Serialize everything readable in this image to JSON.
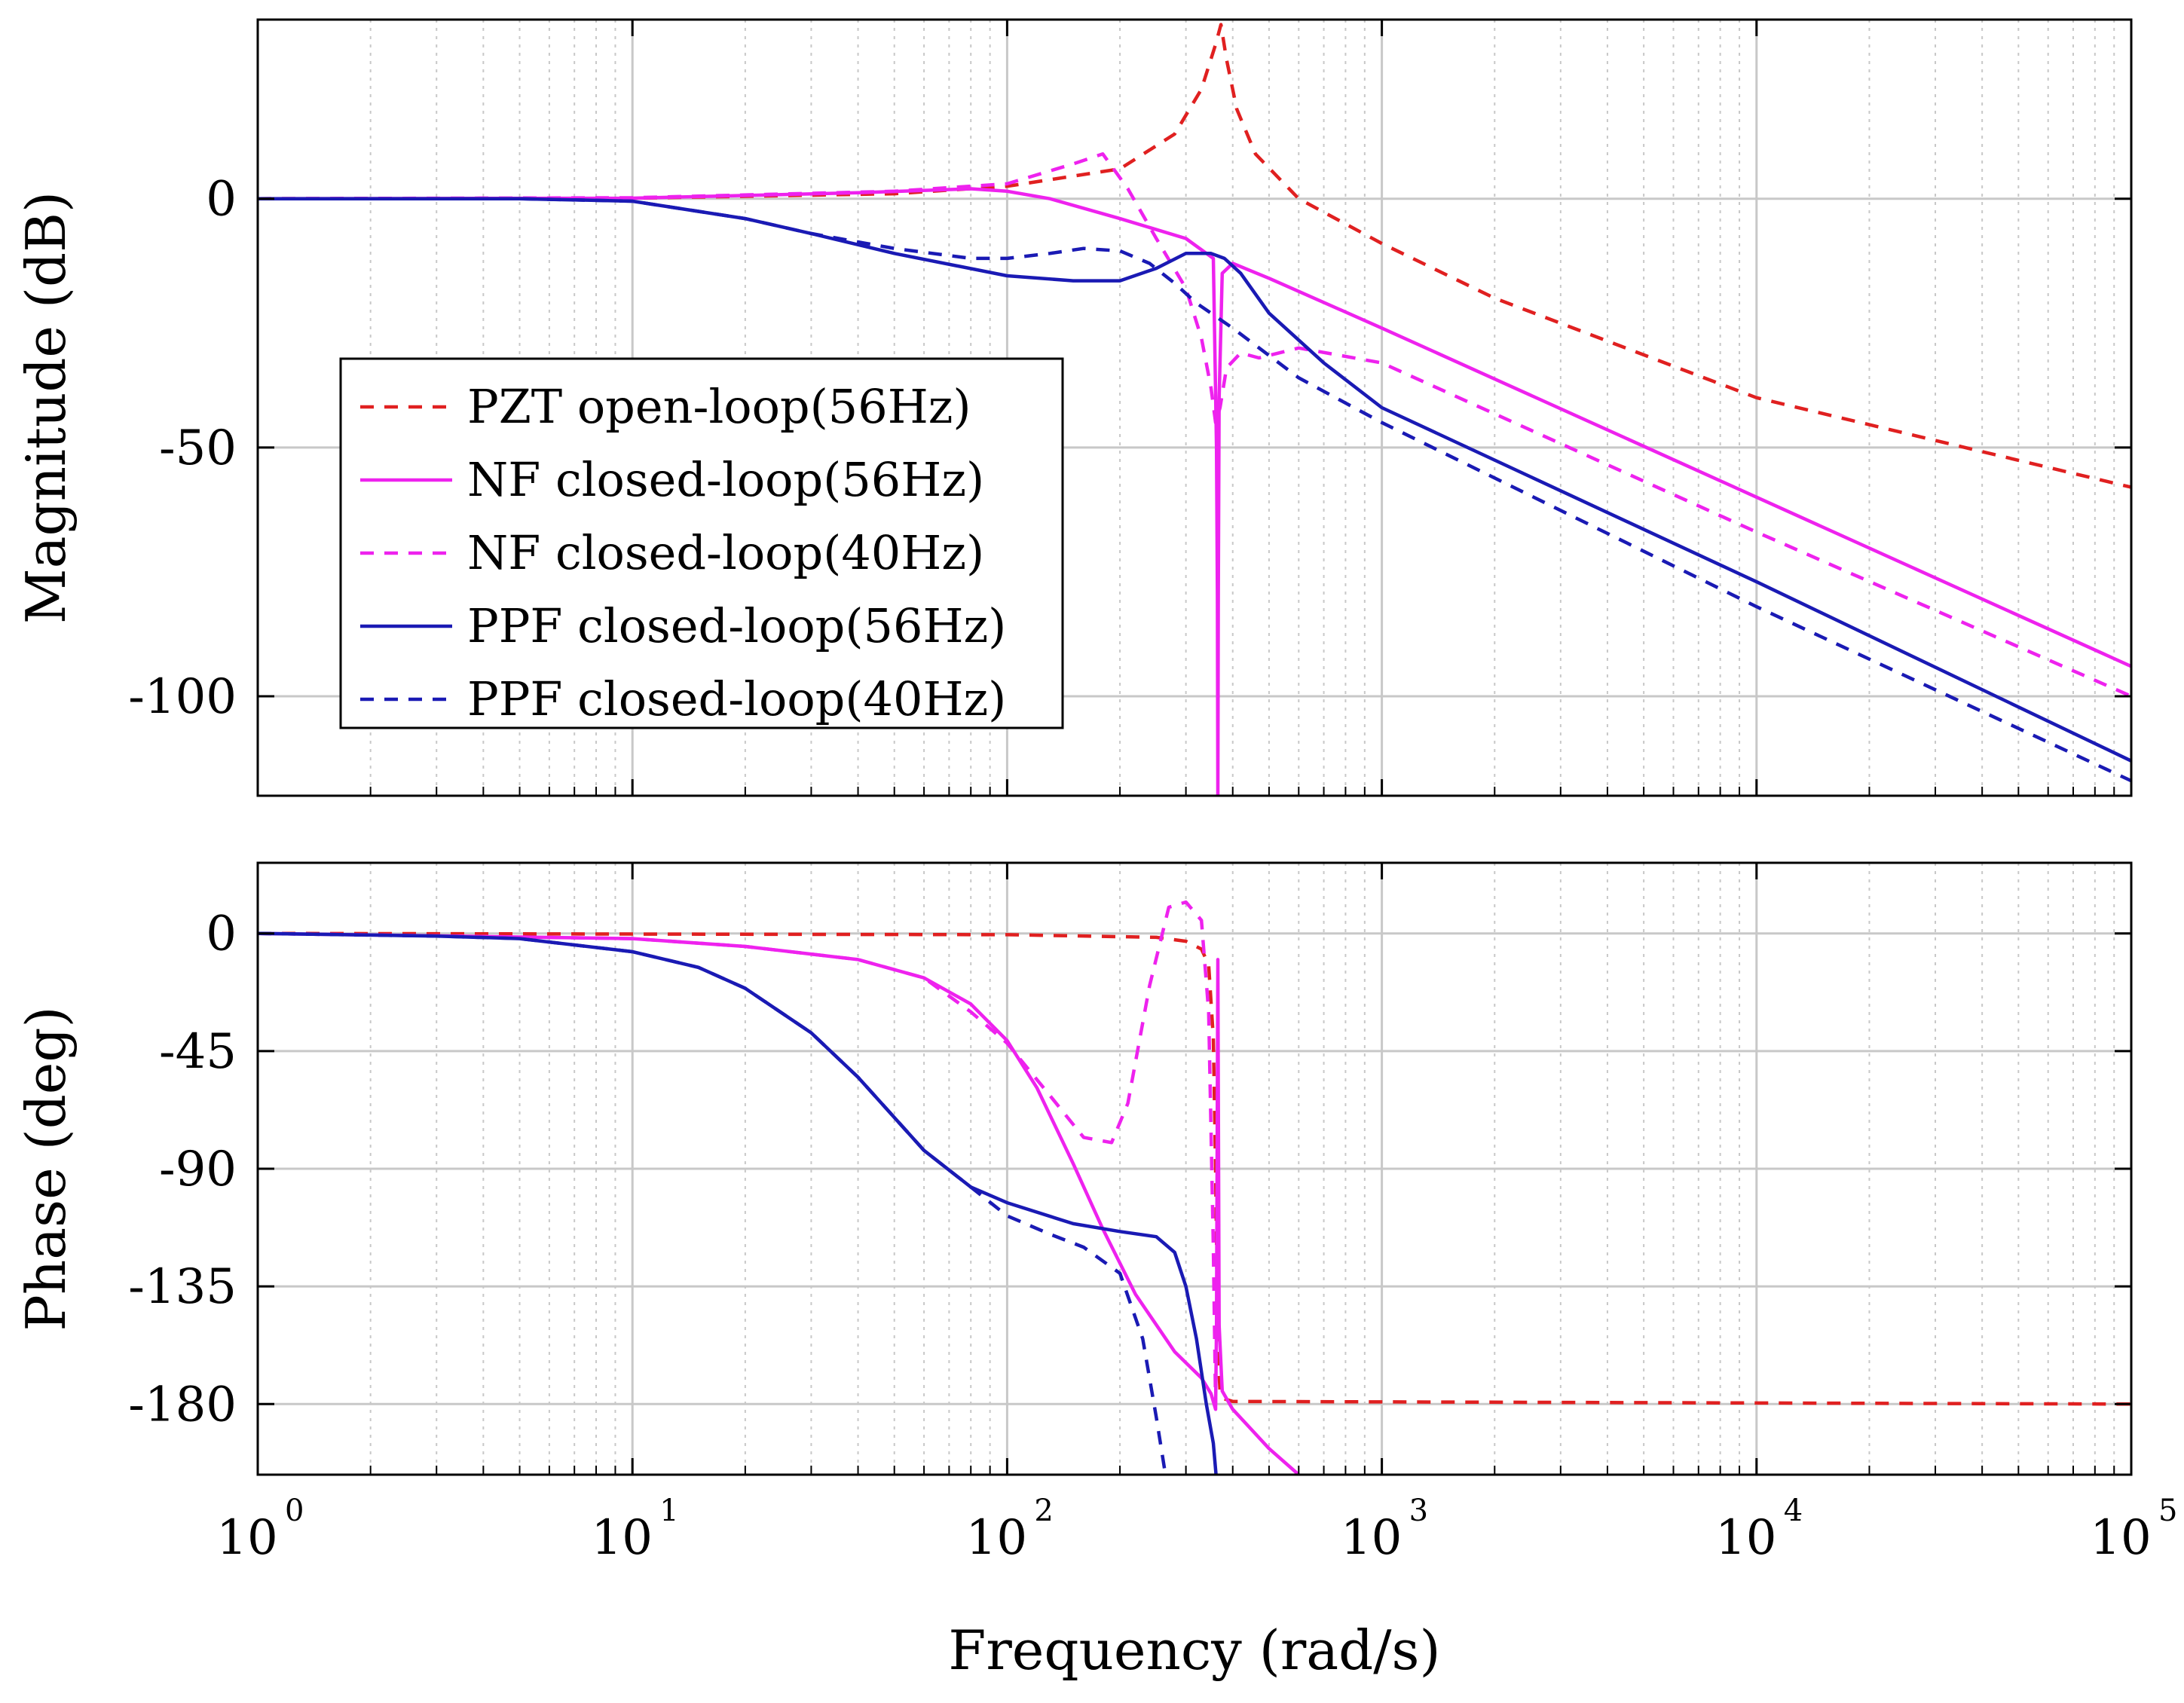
{
  "chart_data": {
    "type": "line",
    "title": "",
    "xlabel": "Frequency (rad/s)",
    "xscale": "log",
    "xlim": [
      1,
      100000
    ],
    "x_ticks": [
      {
        "base": "10",
        "exp": "0"
      },
      {
        "base": "10",
        "exp": "1"
      },
      {
        "base": "10",
        "exp": "2"
      },
      {
        "base": "10",
        "exp": "3"
      },
      {
        "base": "10",
        "exp": "4"
      },
      {
        "base": "10",
        "exp": "5"
      }
    ],
    "colors": {
      "pzt": "#e02020",
      "nf": "#ee22ee",
      "ppf": "#1a1ab4",
      "grid": "#c8c8c8"
    },
    "legend": {
      "position": "lower-left of magnitude plot",
      "entries": [
        {
          "label": "PZT open-loop(56Hz)",
          "color": "#e02020",
          "dash": true
        },
        {
          "label": "NF closed-loop(56Hz)",
          "color": "#ee22ee",
          "dash": false
        },
        {
          "label": "NF closed-loop(40Hz)",
          "color": "#ee22ee",
          "dash": true
        },
        {
          "label": "PPF closed-loop(56Hz)",
          "color": "#1a1ab4",
          "dash": false
        },
        {
          "label": "PPF closed-loop(40Hz)",
          "color": "#1a1ab4",
          "dash": true
        }
      ]
    },
    "magnitude": {
      "ylabel": "Magnitude (dB)",
      "ylim": [
        -120,
        36
      ],
      "y_ticks": [
        "0",
        "-50",
        "-100"
      ],
      "y_tick_values": [
        0,
        -50,
        -100
      ],
      "series": [
        {
          "name": "PZT open-loop(56Hz)",
          "color": "#e02020",
          "dash": true,
          "x": [
            1,
            10,
            50,
            100,
            200,
            280,
            330,
            360,
            372,
            385,
            410,
            460,
            600,
            1000,
            2000,
            10000,
            100000
          ],
          "y": [
            0,
            0.1,
            1,
            2.5,
            6,
            13,
            22,
            31,
            35,
            28,
            18,
            9,
            0,
            -9,
            -20,
            -40,
            -58
          ]
        },
        {
          "name": "NF closed-loop(56Hz)",
          "color": "#ee22ee",
          "dash": false,
          "x": [
            1,
            10,
            40,
            80,
            100,
            130,
            200,
            300,
            355,
            362,
            364,
            365,
            366,
            368,
            375,
            400,
            500,
            1000,
            10000,
            100000
          ],
          "y": [
            0,
            0.1,
            1.2,
            2,
            1.5,
            0,
            -4,
            -8,
            -12,
            -50,
            -80,
            -120,
            -80,
            -40,
            -15,
            -13,
            -16,
            -26,
            -60,
            -94
          ]
        },
        {
          "name": "NF closed-loop(40Hz)",
          "color": "#ee22ee",
          "dash": true,
          "x": [
            1,
            10,
            50,
            100,
            150,
            180,
            210,
            250,
            300,
            330,
            350,
            360,
            370,
            385,
            420,
            470,
            600,
            1000,
            10000,
            100000
          ],
          "y": [
            0,
            0.2,
            1.5,
            3,
            7,
            9,
            2,
            -8,
            -18,
            -28,
            -38,
            -45,
            -42,
            -34,
            -31,
            -32,
            -30,
            -33,
            -67,
            -100
          ]
        },
        {
          "name": "PPF closed-loop(56Hz)",
          "color": "#1a1ab4",
          "dash": false,
          "x": [
            1,
            5,
            10,
            20,
            30,
            50,
            100,
            150,
            200,
            250,
            300,
            350,
            380,
            420,
            500,
            700,
            1000,
            10000,
            100000
          ],
          "y": [
            0,
            0,
            -0.5,
            -4,
            -7,
            -11,
            -15.5,
            -16.5,
            -16.5,
            -14,
            -11,
            -11,
            -12,
            -15,
            -23,
            -33,
            -42,
            -77,
            -113
          ]
        },
        {
          "name": "PPF closed-loop(40Hz)",
          "color": "#1a1ab4",
          "dash": true,
          "x": [
            1,
            5,
            10,
            20,
            30,
            50,
            80,
            100,
            130,
            160,
            200,
            240,
            280,
            320,
            400,
            600,
            1000,
            10000,
            100000
          ],
          "y": [
            0,
            0,
            -0.5,
            -4,
            -7,
            -10,
            -12,
            -12,
            -11,
            -10,
            -10.5,
            -13,
            -17,
            -21,
            -26,
            -36,
            -45,
            -82,
            -117
          ]
        }
      ]
    },
    "phase": {
      "ylabel": "Phase (deg)",
      "ylim": [
        -207,
        27
      ],
      "y_ticks": [
        "0",
        "-45",
        "-90",
        "-135",
        "-180"
      ],
      "y_tick_values": [
        0,
        -45,
        -90,
        -135,
        -180
      ],
      "series": [
        {
          "name": "PZT open-loop(56Hz)",
          "color": "#e02020",
          "dash": true,
          "x": [
            1,
            100,
            250,
            300,
            330,
            345,
            355,
            360,
            365,
            370,
            380,
            400,
            100000
          ],
          "y": [
            0,
            -0.5,
            -1.5,
            -3,
            -6,
            -12,
            -40,
            -90,
            -160,
            -175,
            -178,
            -179,
            -180
          ]
        },
        {
          "name": "NF closed-loop(56Hz)",
          "color": "#ee22ee",
          "dash": false,
          "x": [
            1,
            10,
            20,
            40,
            60,
            80,
            100,
            120,
            150,
            180,
            220,
            280,
            330,
            350,
            360,
            362,
            365,
            368,
            375,
            400,
            500,
            600
          ],
          "y": [
            0,
            -2,
            -5,
            -10,
            -17,
            -27,
            -41,
            -59,
            -88,
            -113,
            -138,
            -160,
            -170,
            -176,
            -182,
            -150,
            -10,
            -150,
            -175,
            -182,
            -197,
            -207
          ]
        },
        {
          "name": "NF closed-loop(40Hz)",
          "color": "#ee22ee",
          "dash": true,
          "x": [
            1,
            10,
            20,
            40,
            60,
            80,
            100,
            130,
            160,
            190,
            210,
            240,
            270,
            300,
            330,
            345,
            355,
            360
          ],
          "y": [
            0,
            -2,
            -5,
            -10,
            -17,
            -30,
            -42,
            -62,
            -78,
            -80,
            -65,
            -20,
            10,
            12,
            5,
            -30,
            -120,
            -180
          ]
        },
        {
          "name": "PPF closed-loop(56Hz)",
          "color": "#1a1ab4",
          "dash": false,
          "x": [
            1,
            3,
            5,
            10,
            15,
            20,
            30,
            40,
            60,
            80,
            100,
            150,
            200,
            250,
            280,
            300,
            320,
            340,
            355,
            360,
            365
          ],
          "y": [
            0,
            -1,
            -2,
            -7,
            -13,
            -21,
            -38,
            -55,
            -83,
            -97,
            -103,
            -111,
            -114,
            -116,
            -122,
            -135,
            -155,
            -180,
            -195,
            -205,
            -215
          ]
        },
        {
          "name": "PPF closed-loop(40Hz)",
          "color": "#1a1ab4",
          "dash": true,
          "x": [
            1,
            3,
            5,
            10,
            15,
            20,
            30,
            40,
            60,
            80,
            100,
            130,
            160,
            200,
            230,
            250,
            270
          ],
          "y": [
            0,
            -1,
            -2,
            -7,
            -13,
            -21,
            -38,
            -55,
            -83,
            -97,
            -108,
            -115,
            -120,
            -130,
            -155,
            -185,
            -215
          ]
        }
      ]
    }
  }
}
